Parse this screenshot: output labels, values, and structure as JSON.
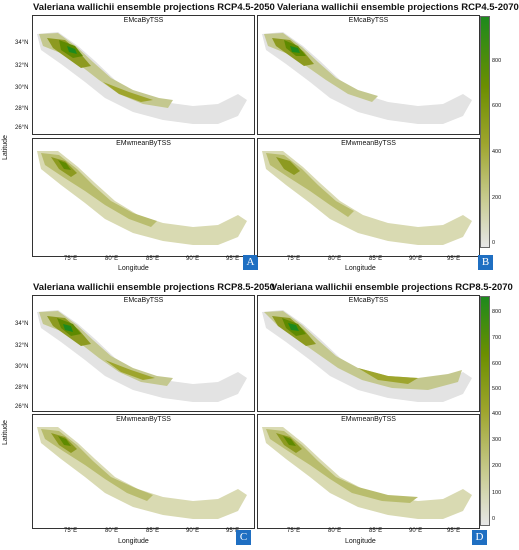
{
  "figures": [
    {
      "id": "A",
      "title": "Valeriana wallichii ensemble projections RCP4.5-2050",
      "top_map": "EMcaByTSS",
      "bottom_map": "EMwmeanByTSS",
      "label": "A"
    },
    {
      "id": "B",
      "title": "Valeriana wallichii ensemble projections RCP4.5-2070",
      "top_map": "EMcaByTSS",
      "bottom_map": "EMwmeanByTSS",
      "label": "B"
    },
    {
      "id": "C",
      "title": "Valeriana wallichii ensemble projections RCP8.5-2050",
      "top_map": "EMcaByTSS",
      "bottom_map": "EMwmeanByTSS",
      "label": "C"
    },
    {
      "id": "D",
      "title": "Valeriana wallichii ensemble projections RCP8.5-2070",
      "top_map": "EMcaByTSS",
      "bottom_map": "EMwmeanByTSS",
      "label": "D"
    }
  ],
  "axes": {
    "latitude_label": "Latitude",
    "longitude_label": "Longitude",
    "lat_ticks": [
      "34°N",
      "32°N",
      "30°N",
      "28°N",
      "26°N"
    ],
    "lon_ticks": [
      "75°E",
      "80°E",
      "85°E",
      "90°E",
      "95°E"
    ]
  },
  "legend_top": {
    "ticks": [
      "800",
      "600",
      "400",
      "200",
      "0"
    ],
    "colors": [
      "#1d8a1d",
      "#6b8e00",
      "#9ea52d",
      "#c9cc93",
      "#e6e6e6"
    ]
  },
  "legend_bottom": {
    "ticks": [
      "800",
      "700",
      "600",
      "500",
      "400",
      "300",
      "200",
      "100",
      "0"
    ],
    "colors": [
      "#1d8a1d",
      "#6b8e00",
      "#9ea52d",
      "#c9cc93",
      "#e6e6e6"
    ]
  },
  "tag_color": "#1f6fc2"
}
